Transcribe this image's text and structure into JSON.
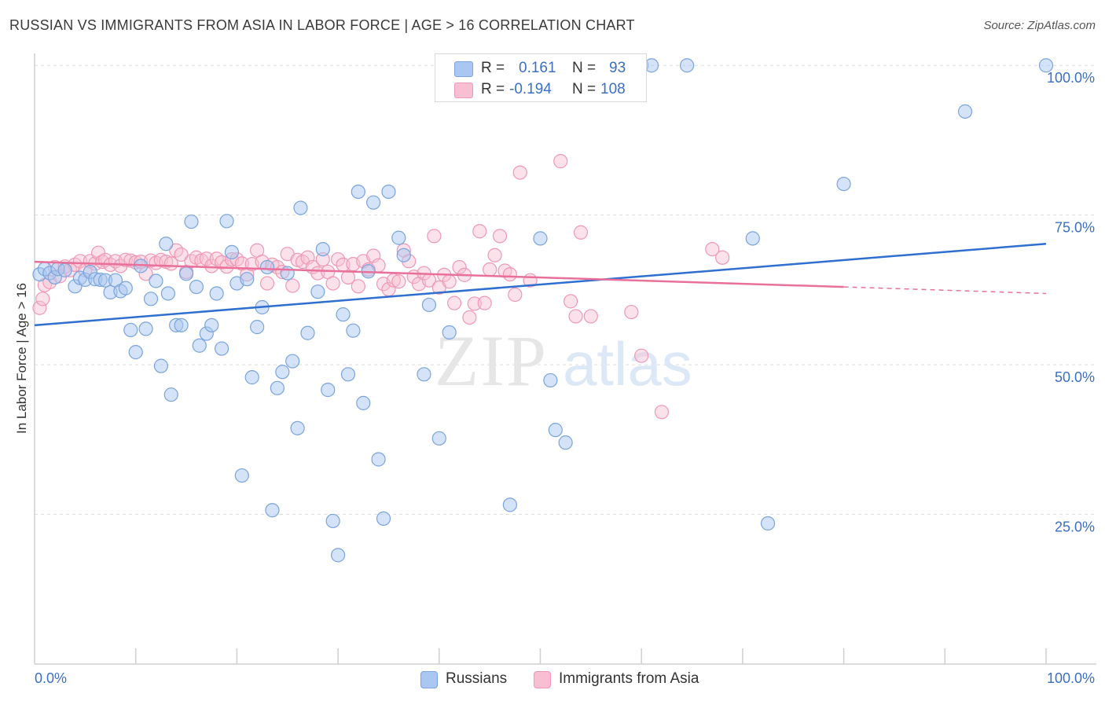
{
  "header": {
    "title": "RUSSIAN VS IMMIGRANTS FROM ASIA IN LABOR FORCE | AGE > 16 CORRELATION CHART",
    "source": "Source: ZipAtlas.com"
  },
  "legend_box": {
    "rows": [
      {
        "r_label": "R =",
        "r_value": "0.161",
        "n_label": "N =",
        "n_value": "93"
      },
      {
        "r_label": "R =",
        "r_value": "-0.194",
        "n_label": "N =",
        "n_value": "108"
      }
    ]
  },
  "bottom_legend": {
    "russians": "Russians",
    "asia": "Immigrants from Asia"
  },
  "watermark": {
    "zip": "ZIP",
    "atlas": "atlas"
  },
  "colors": {
    "russians_fill": "#a9c7f0",
    "russians_stroke": "#7aa4dc",
    "russians_line": "#2f6fcf",
    "asia_fill": "#f7bfd1",
    "asia_stroke": "#ee98b5",
    "asia_line": "#e8709a",
    "tick_label": "#3a6fc4",
    "grid": "#dcdcdc"
  },
  "chart_data": {
    "type": "scatter",
    "title": "RUSSIAN VS IMMIGRANTS FROM ASIA IN LABOR FORCE | AGE > 16 CORRELATION CHART",
    "xlabel": "",
    "ylabel": "In Labor Force | Age > 16",
    "xlim": [
      0,
      100
    ],
    "ylim": [
      0,
      102
    ],
    "x_tick_labels": [
      "0.0%",
      "100.0%"
    ],
    "y_ticks": [
      25,
      50,
      75,
      100
    ],
    "y_tick_labels": [
      "25.0%",
      "50.0%",
      "75.0%",
      "100.0%"
    ],
    "grid": true,
    "legend_position": "top-center",
    "series": [
      {
        "name": "Russians",
        "r": 0.161,
        "n": 93,
        "trend": {
          "x": [
            0,
            100
          ],
          "y": [
            56.6,
            70.2
          ]
        },
        "points": [
          [
            0.5,
            65.1
          ],
          [
            1,
            66
          ],
          [
            1.5,
            65.3
          ],
          [
            2,
            64.6
          ],
          [
            2.3,
            66
          ],
          [
            3,
            65.8
          ],
          [
            4,
            63.1
          ],
          [
            4.5,
            64.5
          ],
          [
            5,
            64.2
          ],
          [
            5.5,
            65.5
          ],
          [
            6,
            64.3
          ],
          [
            6.5,
            64.2
          ],
          [
            7,
            64.1
          ],
          [
            7.5,
            62.1
          ],
          [
            8,
            64.1
          ],
          [
            8.5,
            62.3
          ],
          [
            9,
            62.8
          ],
          [
            9.5,
            55.8
          ],
          [
            10,
            52.1
          ],
          [
            10.5,
            66.5
          ],
          [
            11,
            56
          ],
          [
            11.5,
            61
          ],
          [
            12,
            64
          ],
          [
            12.5,
            49.8
          ],
          [
            13,
            70.2
          ],
          [
            13.2,
            61.9
          ],
          [
            13.5,
            45
          ],
          [
            14,
            56.6
          ],
          [
            14.5,
            56.6
          ],
          [
            15,
            65.2
          ],
          [
            15.5,
            73.9
          ],
          [
            16,
            63
          ],
          [
            16.3,
            53.2
          ],
          [
            17,
            55.2
          ],
          [
            17.5,
            56.6
          ],
          [
            18,
            61.9
          ],
          [
            18.5,
            52.7
          ],
          [
            19,
            74
          ],
          [
            19.5,
            68.8
          ],
          [
            20,
            63.6
          ],
          [
            20.5,
            31.5
          ],
          [
            21,
            64.3
          ],
          [
            21.5,
            47.9
          ],
          [
            22,
            56.3
          ],
          [
            22.5,
            59.6
          ],
          [
            23,
            66.3
          ],
          [
            23.5,
            25.7
          ],
          [
            24,
            46.1
          ],
          [
            24.5,
            48.8
          ],
          [
            25,
            65.3
          ],
          [
            25.5,
            50.6
          ],
          [
            26,
            39.4
          ],
          [
            26.3,
            76.2
          ],
          [
            27,
            55.3
          ],
          [
            28,
            62.2
          ],
          [
            28.5,
            69.3
          ],
          [
            29,
            45.8
          ],
          [
            29.5,
            23.9
          ],
          [
            30,
            18.2
          ],
          [
            30.5,
            58.4
          ],
          [
            31,
            48.4
          ],
          [
            31.5,
            55.7
          ],
          [
            32,
            78.9
          ],
          [
            32.5,
            43.6
          ],
          [
            33,
            65.6
          ],
          [
            33.5,
            77.1
          ],
          [
            34,
            34.2
          ],
          [
            34.5,
            24.3
          ],
          [
            35,
            78.9
          ],
          [
            36,
            71.2
          ],
          [
            36.5,
            68.3
          ],
          [
            38.5,
            48.4
          ],
          [
            39,
            60
          ],
          [
            40,
            37.7
          ],
          [
            41,
            55.4
          ],
          [
            47,
            26.6
          ],
          [
            50,
            71.1
          ],
          [
            51,
            47.4
          ],
          [
            51.5,
            39.1
          ],
          [
            52.5,
            37
          ],
          [
            60,
            100
          ],
          [
            61,
            100
          ],
          [
            64.5,
            100
          ],
          [
            71,
            71.1
          ],
          [
            72.5,
            23.5
          ],
          [
            80,
            80.2
          ],
          [
            92,
            92.3
          ],
          [
            100,
            100
          ]
        ]
      },
      {
        "name": "Immigrants from Asia",
        "r": -0.194,
        "n": 108,
        "trend": {
          "x": [
            0,
            80
          ],
          "y": [
            67.2,
            63
          ]
        },
        "trend_extrapolated": {
          "x": [
            80,
            100
          ],
          "y": [
            63,
            61.9
          ]
        },
        "points": [
          [
            0.5,
            59.5
          ],
          [
            0.8,
            61
          ],
          [
            1,
            63.3
          ],
          [
            1.5,
            63.8
          ],
          [
            2,
            66.3
          ],
          [
            2.5,
            64.8
          ],
          [
            3,
            66.4
          ],
          [
            3.5,
            65.8
          ],
          [
            4,
            66.7
          ],
          [
            4.5,
            67.3
          ],
          [
            5,
            65.8
          ],
          [
            5.5,
            67.3
          ],
          [
            6,
            66.9
          ],
          [
            6.3,
            68.7
          ],
          [
            6.7,
            67.2
          ],
          [
            7,
            67.5
          ],
          [
            7.5,
            66.7
          ],
          [
            8,
            67.3
          ],
          [
            8.5,
            66.5
          ],
          [
            9,
            67.5
          ],
          [
            9.5,
            67.4
          ],
          [
            10,
            67.1
          ],
          [
            10.5,
            67.2
          ],
          [
            11,
            65.2
          ],
          [
            11.5,
            67.4
          ],
          [
            12,
            67
          ],
          [
            12.5,
            67.5
          ],
          [
            13,
            67.2
          ],
          [
            13.5,
            66.9
          ],
          [
            14,
            69.1
          ],
          [
            14.5,
            68.4
          ],
          [
            15,
            65.5
          ],
          [
            15.5,
            67.3
          ],
          [
            16,
            67.9
          ],
          [
            16.5,
            67.4
          ],
          [
            17,
            67.7
          ],
          [
            17.5,
            66.5
          ],
          [
            18,
            67.7
          ],
          [
            18.5,
            67.1
          ],
          [
            19,
            66.4
          ],
          [
            19.5,
            67.6
          ],
          [
            20,
            67.6
          ],
          [
            20.5,
            66.9
          ],
          [
            21,
            65.1
          ],
          [
            21.5,
            66.8
          ],
          [
            22,
            69.1
          ],
          [
            22.5,
            67.2
          ],
          [
            23,
            63.6
          ],
          [
            23.5,
            66.7
          ],
          [
            24,
            66.3
          ],
          [
            24.5,
            65.5
          ],
          [
            25,
            68.5
          ],
          [
            25.5,
            63.2
          ],
          [
            26,
            67.5
          ],
          [
            26.5,
            67.2
          ],
          [
            27,
            67.9
          ],
          [
            27.5,
            66.3
          ],
          [
            28,
            65.3
          ],
          [
            28.5,
            67.6
          ],
          [
            29,
            65.5
          ],
          [
            29.5,
            63.6
          ],
          [
            30,
            67.6
          ],
          [
            30.5,
            66.7
          ],
          [
            31,
            64.6
          ],
          [
            31.5,
            66.8
          ],
          [
            32,
            63.1
          ],
          [
            32.5,
            67.3
          ],
          [
            33,
            65.9
          ],
          [
            33.5,
            68.2
          ],
          [
            34,
            66.6
          ],
          [
            34.5,
            63.5
          ],
          [
            35,
            62.6
          ],
          [
            35.5,
            64.1
          ],
          [
            36,
            63.9
          ],
          [
            36.5,
            69.1
          ],
          [
            37,
            67.3
          ],
          [
            37.5,
            64.7
          ],
          [
            38,
            63.5
          ],
          [
            38.5,
            65.3
          ],
          [
            39,
            64.1
          ],
          [
            39.5,
            71.5
          ],
          [
            40,
            62.9
          ],
          [
            40.5,
            65
          ],
          [
            41,
            63.9
          ],
          [
            41.5,
            60.3
          ],
          [
            42,
            66.3
          ],
          [
            42.5,
            65
          ],
          [
            43,
            57.9
          ],
          [
            43.5,
            60.2
          ],
          [
            44,
            72.3
          ],
          [
            44.5,
            60.3
          ],
          [
            45,
            65.9
          ],
          [
            45.5,
            68.3
          ],
          [
            46,
            71.5
          ],
          [
            46.5,
            65.7
          ],
          [
            47,
            65.1
          ],
          [
            47.5,
            61.7
          ],
          [
            48,
            82.1
          ],
          [
            49,
            64.1
          ],
          [
            52,
            84
          ],
          [
            53,
            60.6
          ],
          [
            53.5,
            58.1
          ],
          [
            54,
            72.1
          ],
          [
            55,
            58.1
          ],
          [
            59,
            58.8
          ],
          [
            60,
            51.5
          ],
          [
            62,
            42.1
          ],
          [
            67,
            69.3
          ],
          [
            68,
            67.9
          ]
        ]
      }
    ]
  }
}
